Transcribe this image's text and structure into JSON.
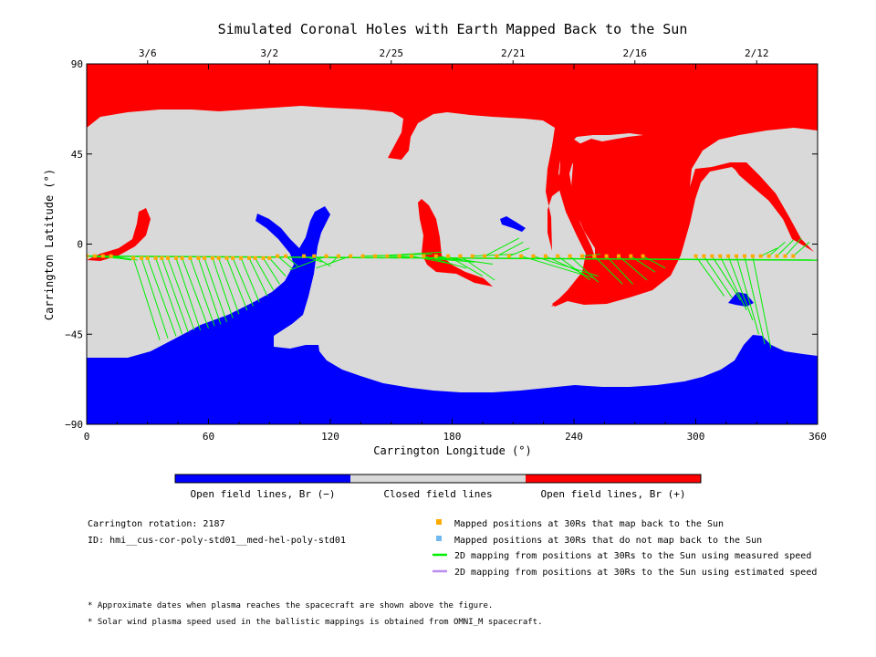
{
  "chart_data": {
    "type": "heatmap",
    "title": "Simulated Coronal Holes with Earth Mapped Back to the Sun",
    "xlabel": "Carrington Longitude (°)",
    "ylabel": "Carrington Latitude (°)",
    "xlim": [
      0,
      360
    ],
    "ylim": [
      -90,
      90
    ],
    "xticks": [
      "0",
      "60",
      "120",
      "180",
      "240",
      "300",
      "360"
    ],
    "xtick_values": [
      0,
      60,
      120,
      180,
      240,
      300,
      360
    ],
    "yticks": [
      "90",
      "45",
      "0",
      "−45",
      "−90"
    ],
    "ytick_values": [
      90,
      45,
      0,
      -45,
      -90
    ],
    "top_dates": [
      {
        "label": "3/6",
        "lon": 30
      },
      {
        "label": "3/2",
        "lon": 90
      },
      {
        "label": "2/25",
        "lon": 150
      },
      {
        "label": "2/21",
        "lon": 210
      },
      {
        "label": "2/16",
        "lon": 270
      },
      {
        "label": "2/12",
        "lon": 330
      }
    ],
    "colors": {
      "open_negative": "#0000ff",
      "closed": "#d9d9d9",
      "open_positive": "#ff0000",
      "mapped_point": "#ffaa00",
      "unmapped_point": "#70b8f0",
      "measured_line": "#00ee00",
      "estimated_line": "#b98cf0"
    },
    "colorbar": {
      "labels": [
        "Open field lines, Br (−)",
        "Closed field lines",
        "Open field lines, Br (+)"
      ]
    },
    "mapping": {
      "earth_lat_start": -6,
      "earth_lat_end": -8,
      "lines": [
        [
          0,
          -6,
          15,
          -7
        ],
        [
          4,
          -6,
          18,
          -7
        ],
        [
          8,
          -6,
          22,
          -8
        ],
        [
          12,
          -6,
          25,
          -8
        ],
        [
          23,
          -7,
          36,
          -48
        ],
        [
          27,
          -7,
          40,
          -47
        ],
        [
          30,
          -7,
          44,
          -46
        ],
        [
          34,
          -7,
          47,
          -45
        ],
        [
          37,
          -7,
          50,
          -44
        ],
        [
          40,
          -7,
          53,
          -43
        ],
        [
          44,
          -7,
          56,
          -43
        ],
        [
          47,
          -7,
          60,
          -42
        ],
        [
          51,
          -7,
          63,
          -41
        ],
        [
          55,
          -7,
          66,
          -40
        ],
        [
          58,
          -7,
          69,
          -39
        ],
        [
          62,
          -7,
          72,
          -37
        ],
        [
          65,
          -7,
          75,
          -35
        ],
        [
          69,
          -7,
          79,
          -33
        ],
        [
          72,
          -7,
          82,
          -31
        ],
        [
          76,
          -7,
          85,
          -29
        ],
        [
          80,
          -7,
          89,
          -26
        ],
        [
          83,
          -7,
          92,
          -23
        ],
        [
          87,
          -7,
          95,
          -20
        ],
        [
          90,
          -7,
          98,
          -16
        ],
        [
          94,
          -6,
          101,
          -12
        ],
        [
          98,
          -6,
          104,
          -11
        ],
        [
          107,
          -6,
          116,
          -9
        ],
        [
          112,
          -6,
          120,
          -11
        ],
        [
          118,
          -6,
          100,
          -13
        ],
        [
          124,
          -6,
          120,
          -10
        ],
        [
          130,
          -6,
          113,
          -12
        ],
        [
          136,
          -6,
          170,
          -5
        ],
        [
          142,
          -6,
          175,
          -4
        ],
        [
          148,
          -6,
          186,
          -8
        ],
        [
          154,
          -6,
          191,
          -9
        ],
        [
          160,
          -6,
          180,
          -10
        ],
        [
          166,
          -6,
          187,
          -12
        ],
        [
          172,
          -6,
          200,
          -10
        ],
        [
          178,
          -6,
          195,
          -16
        ],
        [
          184,
          -6,
          201,
          -18
        ],
        [
          190,
          -6,
          211,
          -5
        ],
        [
          196,
          -6,
          213,
          3
        ],
        [
          202,
          -6,
          215,
          1
        ],
        [
          208,
          -6,
          218,
          -2
        ],
        [
          214,
          -6,
          250,
          -17
        ],
        [
          220,
          -6,
          252,
          -16
        ],
        [
          226,
          -6,
          245,
          -15
        ],
        [
          232,
          -6,
          248,
          -18
        ],
        [
          238,
          -6,
          252,
          -19
        ],
        [
          244,
          -6,
          253,
          -5
        ],
        [
          250,
          -6,
          264,
          -20
        ],
        [
          256,
          -6,
          269,
          -20
        ],
        [
          262,
          -6,
          276,
          -18
        ],
        [
          268,
          -6,
          280,
          -14
        ],
        [
          274,
          -6,
          285,
          -12
        ],
        [
          300,
          -6,
          314,
          -26
        ],
        [
          304,
          -6,
          318,
          -27
        ],
        [
          308,
          -6,
          322,
          -28
        ],
        [
          312,
          -6,
          325,
          -33
        ],
        [
          316,
          -6,
          328,
          -38
        ],
        [
          320,
          -6,
          331,
          -45
        ],
        [
          324,
          -6,
          334,
          -50
        ],
        [
          328,
          -6,
          337,
          -52
        ],
        [
          332,
          -6,
          340,
          -2
        ],
        [
          336,
          -6,
          344,
          1
        ],
        [
          340,
          -6,
          348,
          2
        ],
        [
          344,
          -6,
          352,
          3
        ],
        [
          348,
          -6,
          356,
          1
        ]
      ]
    }
  },
  "footer": {
    "rotation": "Carrington rotation: 2187",
    "id": "ID: hmi__cus-cor-poly-std01__med-hel-poly-std01",
    "note1": "* Approximate dates when plasma reaches the spacecraft are shown above the figure.",
    "note2": "* Solar wind plasma speed used in the ballistic mappings is obtained from OMNI_M spacecraft."
  },
  "legend": {
    "mapped": "Mapped positions at 30Rs that map back to the Sun",
    "unmapped": "Mapped positions at 30Rs that do not map back to the Sun",
    "measured": "2D mapping from positions at 30Rs to the Sun using measured speed",
    "estimated": "2D mapping from positions at 30Rs to the Sun using estimated speed"
  }
}
